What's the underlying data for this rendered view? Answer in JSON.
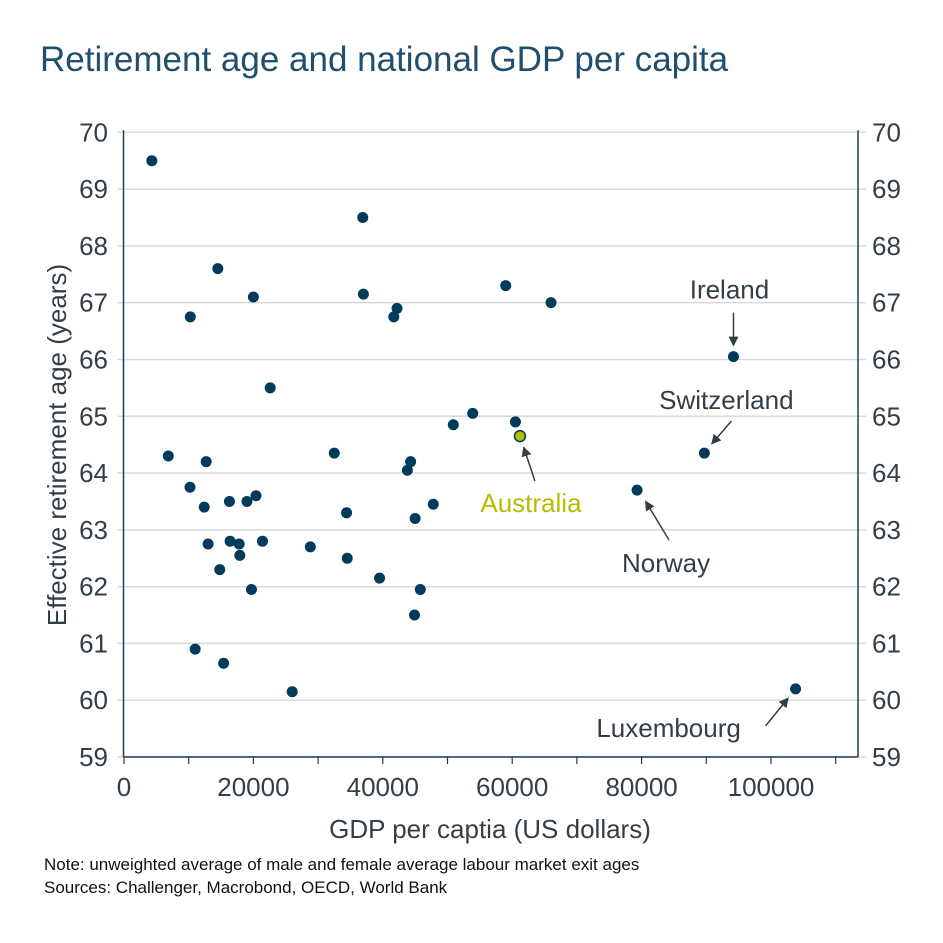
{
  "title": "Retirement age and national GDP per capita",
  "notes": [
    "Note: unweighted average of male and female average labour market exit ages",
    "Sources: Challenger, Macrobond, OECD, World Bank"
  ],
  "colors": {
    "point": "#003b5c",
    "highlight": "#b5bd00",
    "text": "#333f48",
    "title": "#1f4e6e",
    "grid": "#d9d9d9"
  },
  "chart_data": {
    "type": "scatter",
    "title": "Retirement age and national GDP per capita",
    "xlabel": "GDP per captia (US dollars)",
    "ylabel": "Effective retirement age (years)",
    "xlim": [
      0,
      113500
    ],
    "ylim": [
      59,
      70
    ],
    "xticks": [
      0,
      20000,
      40000,
      60000,
      80000,
      100000
    ],
    "yticks": [
      59,
      60,
      61,
      62,
      63,
      64,
      65,
      66,
      67,
      68,
      69,
      70
    ],
    "grid": "horizontal",
    "secondary_y_axis": true,
    "points": [
      {
        "x": 4300,
        "y": 69.5
      },
      {
        "x": 14500,
        "y": 67.6
      },
      {
        "x": 20000,
        "y": 67.1
      },
      {
        "x": 10250,
        "y": 66.75
      },
      {
        "x": 22600,
        "y": 65.5
      },
      {
        "x": 6850,
        "y": 64.3
      },
      {
        "x": 12700,
        "y": 64.2
      },
      {
        "x": 10200,
        "y": 63.75
      },
      {
        "x": 12400,
        "y": 63.4
      },
      {
        "x": 16300,
        "y": 63.5
      },
      {
        "x": 19000,
        "y": 63.5
      },
      {
        "x": 20400,
        "y": 63.6
      },
      {
        "x": 13000,
        "y": 62.75
      },
      {
        "x": 16400,
        "y": 62.8
      },
      {
        "x": 17800,
        "y": 62.75
      },
      {
        "x": 21400,
        "y": 62.8
      },
      {
        "x": 28800,
        "y": 62.7
      },
      {
        "x": 17900,
        "y": 62.55
      },
      {
        "x": 14800,
        "y": 62.3
      },
      {
        "x": 19700,
        "y": 61.95
      },
      {
        "x": 11000,
        "y": 60.9
      },
      {
        "x": 15400,
        "y": 60.65
      },
      {
        "x": 26000,
        "y": 60.15
      },
      {
        "x": 36900,
        "y": 68.5
      },
      {
        "x": 37000,
        "y": 67.15
      },
      {
        "x": 42200,
        "y": 66.9
      },
      {
        "x": 41700,
        "y": 66.75
      },
      {
        "x": 50900,
        "y": 64.85
      },
      {
        "x": 53900,
        "y": 65.05
      },
      {
        "x": 60500,
        "y": 64.9
      },
      {
        "x": 32500,
        "y": 64.35
      },
      {
        "x": 44300,
        "y": 64.2
      },
      {
        "x": 43800,
        "y": 64.05
      },
      {
        "x": 34400,
        "y": 63.3
      },
      {
        "x": 47800,
        "y": 63.45
      },
      {
        "x": 45000,
        "y": 63.2
      },
      {
        "x": 34500,
        "y": 62.5
      },
      {
        "x": 39500,
        "y": 62.15
      },
      {
        "x": 45800,
        "y": 61.95
      },
      {
        "x": 44900,
        "y": 61.5
      },
      {
        "x": 59000,
        "y": 67.3
      },
      {
        "x": 66000,
        "y": 67.0
      },
      {
        "x": 61200,
        "y": 64.65,
        "label": "Australia",
        "highlight": true
      },
      {
        "x": 94200,
        "y": 66.05,
        "label": "Ireland"
      },
      {
        "x": 89700,
        "y": 64.35,
        "label": "Switzerland"
      },
      {
        "x": 79300,
        "y": 63.7,
        "label": "Norway"
      },
      {
        "x": 103800,
        "y": 60.2,
        "label": "Luxembourg"
      }
    ]
  }
}
